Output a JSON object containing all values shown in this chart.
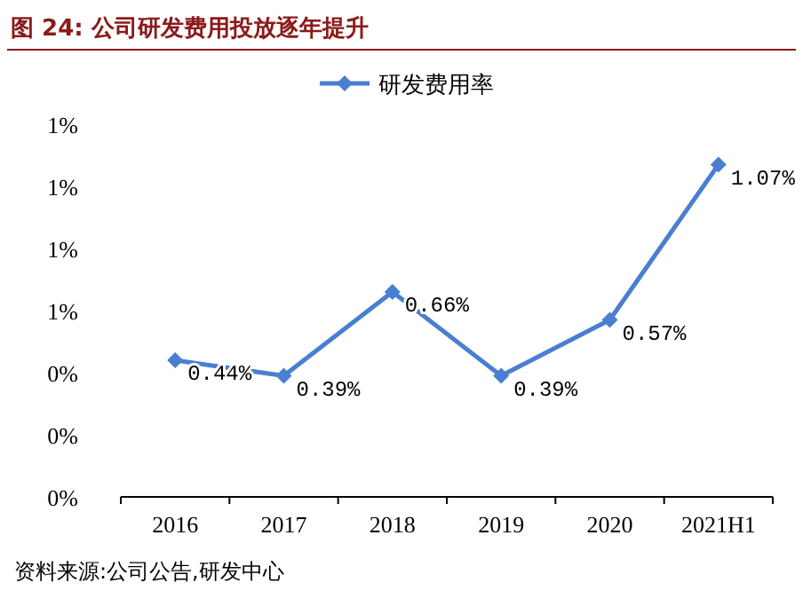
{
  "chart_data": {
    "type": "line",
    "title": "图 24: 公司研发费用投放逐年提升",
    "categories": [
      "2016",
      "2017",
      "2018",
      "2019",
      "2020",
      "2021H1"
    ],
    "series": [
      {
        "name": "研发费用率",
        "color": "#4a7ed0",
        "values": [
          0.44,
          0.39,
          0.66,
          0.39,
          0.57,
          1.07
        ],
        "value_labels": [
          "0.44%",
          "0.39%",
          "0.66%",
          "0.39%",
          "0.57%",
          "1.07%"
        ]
      }
    ],
    "ylim": [
      0,
      1.2
    ],
    "yticks": [
      {
        "value": 0,
        "label": "0%"
      },
      {
        "value": 0.2,
        "label": "0%"
      },
      {
        "value": 0.4,
        "label": "0%"
      },
      {
        "value": 0.6,
        "label": "1%"
      },
      {
        "value": 0.8,
        "label": "1%"
      },
      {
        "value": 1.0,
        "label": "1%"
      },
      {
        "value": 1.2,
        "label": "1%"
      }
    ],
    "legend": "top",
    "marker": "diamond",
    "grid": false,
    "annotations": [
      "资料来源:公司公告,研发中心"
    ]
  }
}
